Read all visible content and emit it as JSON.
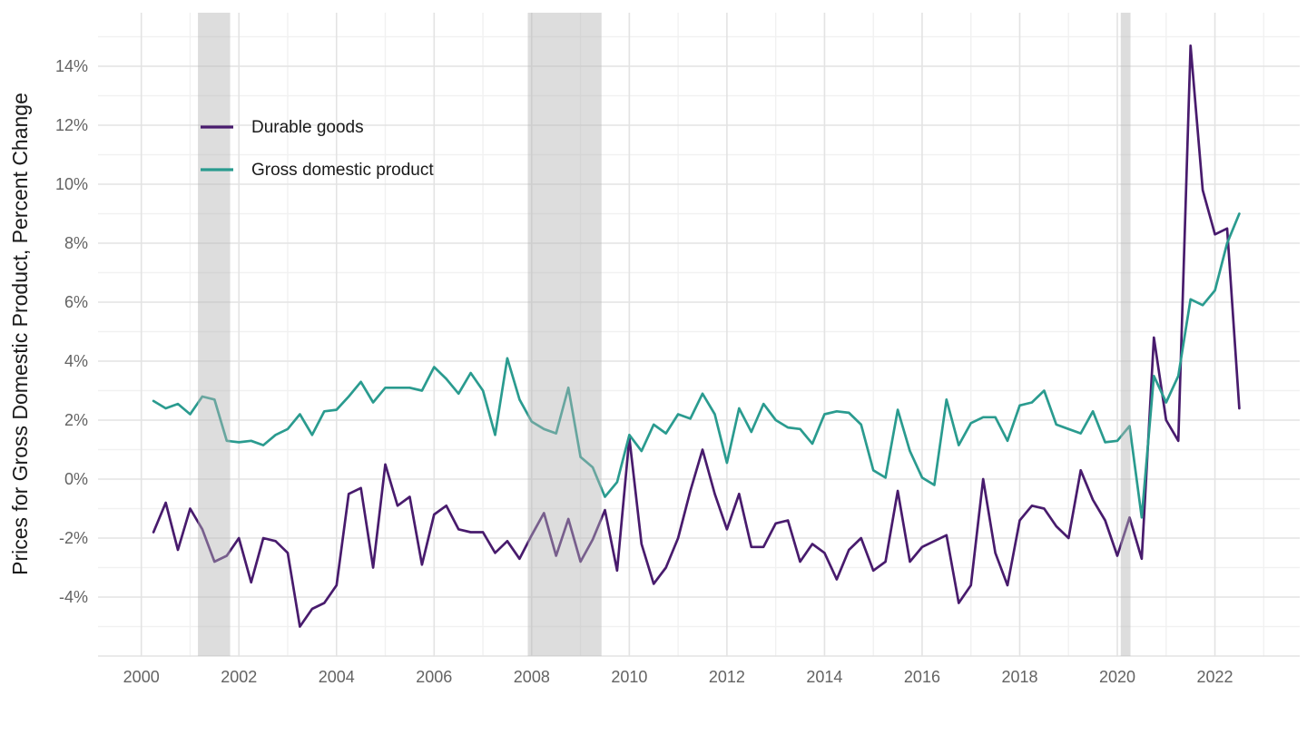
{
  "chart_data": {
    "type": "line",
    "title": "",
    "xlabel": "",
    "ylabel": "Prices for Gross Domestic Product, Percent Change",
    "grid": "on",
    "legend_position": "inside-top-left",
    "xlim": [
      1999.11,
      2023.74
    ],
    "ylim": [
      -6.0,
      15.8
    ],
    "x_major_ticks": [
      2000,
      2002,
      2004,
      2006,
      2008,
      2010,
      2012,
      2014,
      2016,
      2018,
      2020,
      2022
    ],
    "x_tick_labels": [
      "2000",
      "2002",
      "2004",
      "2006",
      "2008",
      "2010",
      "2012",
      "2014",
      "2016",
      "2018",
      "2020",
      "2022"
    ],
    "y_major_ticks": [
      -4,
      -2,
      0,
      2,
      4,
      6,
      8,
      10,
      12,
      14
    ],
    "y_tick_labels": [
      "-4%",
      "-2%",
      "0%",
      "2%",
      "4%",
      "6%",
      "8%",
      "10%",
      "12%",
      "14%"
    ],
    "x_minor_ticks": [
      2001,
      2003,
      2005,
      2007,
      2009,
      2011,
      2013,
      2015,
      2017,
      2019,
      2021,
      2023
    ],
    "y_minor_ticks": [
      -5,
      -3,
      -1,
      1,
      3,
      5,
      7,
      9,
      11,
      13,
      15
    ],
    "y_grid_extra_major": [
      -6
    ],
    "recession_bands": [
      {
        "start": 2001.16,
        "end": 2001.82
      },
      {
        "start": 2007.92,
        "end": 2009.43
      },
      {
        "start": 2020.07,
        "end": 2020.27
      }
    ],
    "x": [
      2000.25,
      2000.5,
      2000.75,
      2001.0,
      2001.25,
      2001.5,
      2001.75,
      2002.0,
      2002.25,
      2002.5,
      2002.75,
      2003.0,
      2003.25,
      2003.5,
      2003.75,
      2004.0,
      2004.25,
      2004.5,
      2004.75,
      2005.0,
      2005.25,
      2005.5,
      2005.75,
      2006.0,
      2006.25,
      2006.5,
      2006.75,
      2007.0,
      2007.25,
      2007.5,
      2007.75,
      2008.0,
      2008.25,
      2008.5,
      2008.75,
      2009.0,
      2009.25,
      2009.5,
      2009.75,
      2010.0,
      2010.25,
      2010.5,
      2010.75,
      2011.0,
      2011.25,
      2011.5,
      2011.75,
      2012.0,
      2012.25,
      2012.5,
      2012.75,
      2013.0,
      2013.25,
      2013.5,
      2013.75,
      2014.0,
      2014.25,
      2014.5,
      2014.75,
      2015.0,
      2015.25,
      2015.5,
      2015.75,
      2016.0,
      2016.25,
      2016.5,
      2016.75,
      2017.0,
      2017.25,
      2017.5,
      2017.75,
      2018.0,
      2018.25,
      2018.5,
      2018.75,
      2019.0,
      2019.25,
      2019.5,
      2019.75,
      2020.0,
      2020.25,
      2020.5,
      2020.75,
      2021.0,
      2021.25,
      2021.5,
      2021.75,
      2022.0,
      2022.25,
      2022.5
    ],
    "series": [
      {
        "name": "Durable goods",
        "color": "#481B6D",
        "values": [
          -1.8,
          -0.8,
          -2.4,
          -1.0,
          -1.7,
          -2.8,
          -2.6,
          -2.0,
          -3.5,
          -2.0,
          -2.1,
          -2.5,
          -5.0,
          -4.4,
          -4.2,
          -3.6,
          -0.5,
          -0.3,
          -3.0,
          0.5,
          -0.9,
          -0.6,
          -2.9,
          -1.2,
          -0.9,
          -1.7,
          -1.8,
          -1.8,
          -2.5,
          -2.1,
          -2.7,
          -1.9,
          -1.15,
          -2.6,
          -1.35,
          -2.8,
          -2.05,
          -1.05,
          -3.1,
          1.4,
          -2.2,
          -3.55,
          -3.0,
          -2.0,
          -0.4,
          1.0,
          -0.5,
          -1.7,
          -0.5,
          -2.3,
          -2.3,
          -1.5,
          -1.4,
          -2.8,
          -2.2,
          -2.5,
          -3.4,
          -2.4,
          -2.0,
          -3.1,
          -2.8,
          -0.4,
          -2.8,
          -2.3,
          -2.1,
          -1.9,
          -4.2,
          -3.6,
          0.0,
          -2.5,
          -3.6,
          -1.4,
          -0.9,
          -1.0,
          -1.6,
          -2.0,
          0.3,
          -0.7,
          -1.4,
          -2.6,
          -1.3,
          -2.7,
          4.8,
          2.0,
          1.3,
          14.7,
          9.8,
          8.3,
          8.5,
          2.4
        ]
      },
      {
        "name": "Gross domestic product",
        "color": "#2A9B8F",
        "values": [
          2.65,
          2.4,
          2.55,
          2.2,
          2.8,
          2.7,
          1.3,
          1.25,
          1.3,
          1.15,
          1.5,
          1.7,
          2.2,
          1.5,
          2.3,
          2.35,
          2.8,
          3.3,
          2.6,
          3.1,
          3.1,
          3.1,
          3.0,
          3.8,
          3.4,
          2.9,
          3.6,
          3.0,
          1.5,
          4.1,
          2.7,
          1.95,
          1.7,
          1.55,
          3.1,
          0.75,
          0.4,
          -0.6,
          -0.1,
          1.5,
          0.95,
          1.85,
          1.55,
          2.2,
          2.05,
          2.9,
          2.2,
          0.55,
          2.4,
          1.6,
          2.55,
          2.0,
          1.75,
          1.7,
          1.2,
          2.2,
          2.3,
          2.25,
          1.85,
          0.3,
          0.05,
          2.35,
          0.95,
          0.05,
          -0.2,
          2.7,
          1.15,
          1.9,
          2.1,
          2.1,
          1.3,
          2.5,
          2.6,
          3.0,
          1.85,
          1.7,
          1.55,
          2.3,
          1.25,
          1.3,
          1.8,
          -1.3,
          3.5,
          2.6,
          3.5,
          6.1,
          5.9,
          6.4,
          8.0,
          9.0
        ]
      }
    ]
  },
  "legend": {
    "items": [
      {
        "label": "Durable goods",
        "color": "#481B6D"
      },
      {
        "label": "Gross domestic product",
        "color": "#2A9B8F"
      }
    ]
  },
  "colors": {
    "background": "#ffffff",
    "grid_major": "#e3e3e3",
    "grid_minor": "#f1f1f1",
    "recession_band": "#b4b4b4",
    "tick_label": "#636363",
    "axis_title": "#1a1a1a"
  }
}
